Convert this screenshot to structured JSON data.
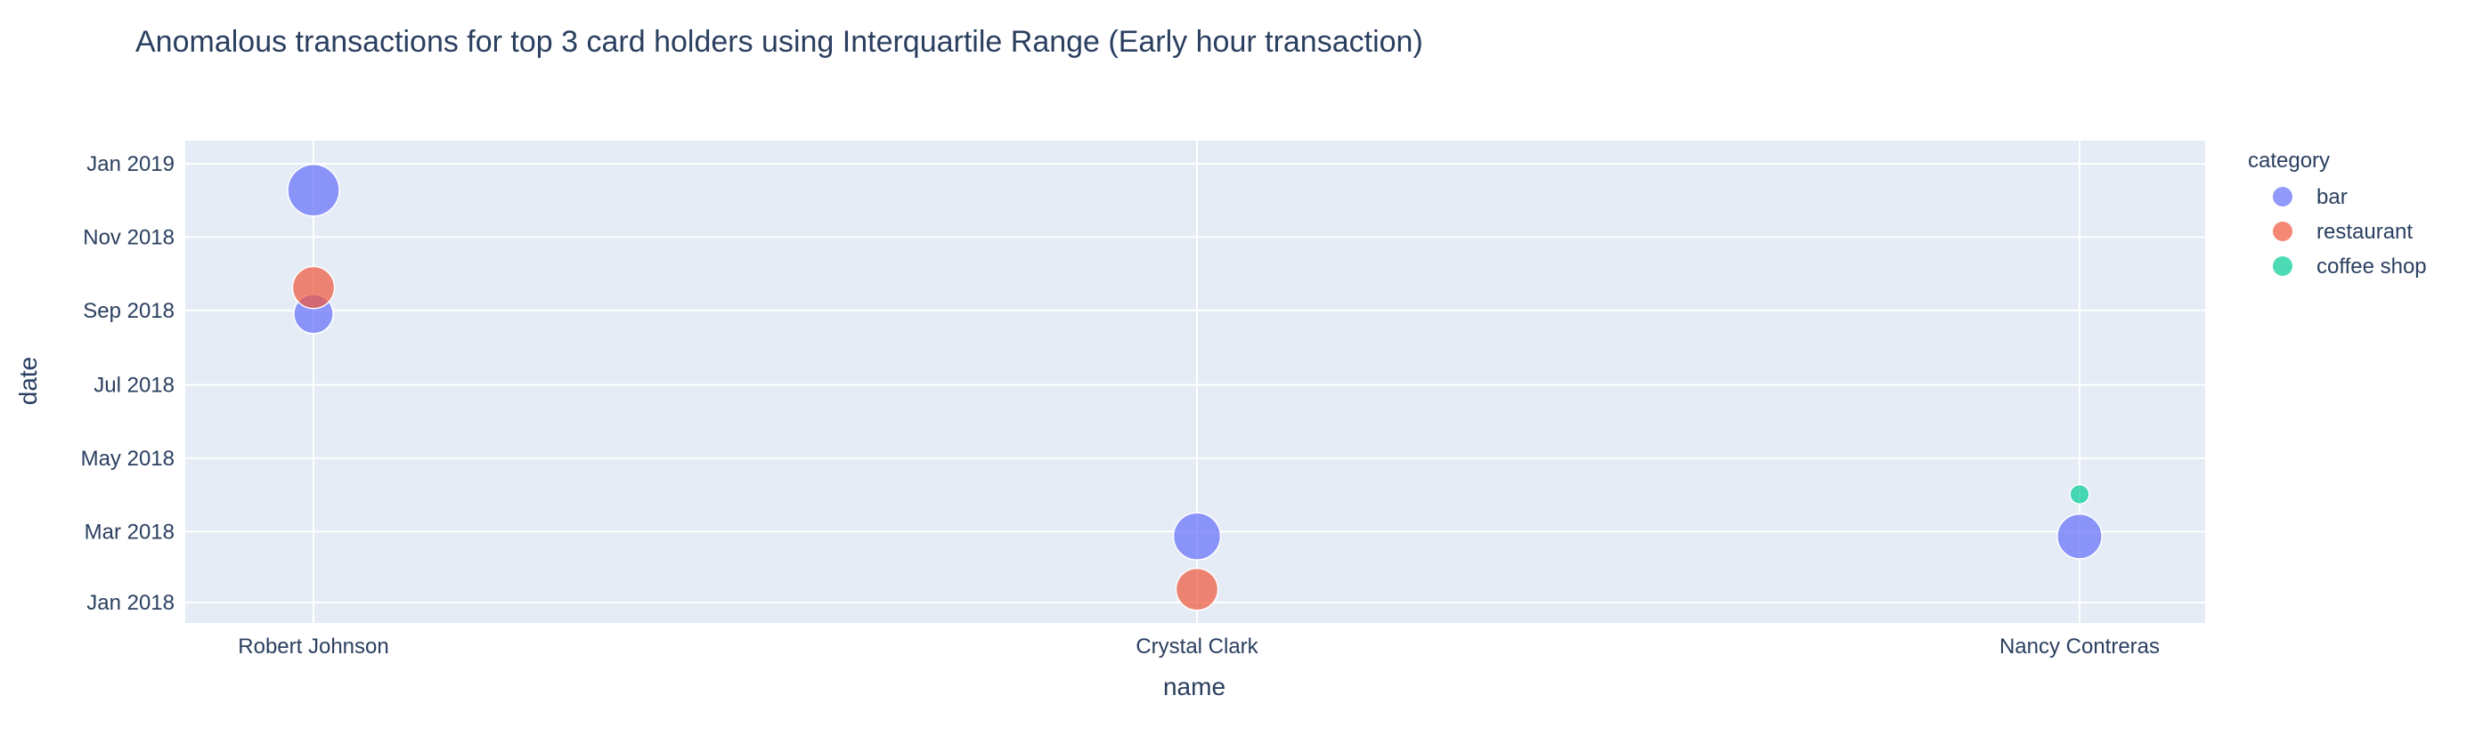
{
  "chart_data": {
    "type": "scatter",
    "title": "Anomalous transactions for top 3 card holders using Interquartile Range (Early hour transaction)",
    "xlabel": "name",
    "ylabel": "date",
    "categories": [
      "Robert Johnson",
      "Crystal Clark",
      "Nancy Contreras"
    ],
    "y_ticks": [
      {
        "value": "2018-01-01",
        "label": "Jan 2018"
      },
      {
        "value": "2018-03-01",
        "label": "Mar 2018"
      },
      {
        "value": "2018-05-01",
        "label": "May 2018"
      },
      {
        "value": "2018-07-01",
        "label": "Jul 2018"
      },
      {
        "value": "2018-09-01",
        "label": "Sep 2018"
      },
      {
        "value": "2018-11-01",
        "label": "Nov 2018"
      },
      {
        "value": "2019-01-01",
        "label": "Jan 2019"
      }
    ],
    "ylim": [
      "2017-12-24",
      "2019-01-22"
    ],
    "grid": true,
    "background_color": "#e5ecf6",
    "legend": {
      "title": "category",
      "placement": "right"
    },
    "series": [
      {
        "name": "bar",
        "color": "#636efa",
        "points": [
          {
            "x": "Robert Johnson",
            "y": "2018-12-10",
            "size": 1.0
          },
          {
            "x": "Robert Johnson",
            "y": "2018-08-29",
            "size": 0.58
          },
          {
            "x": "Crystal Clark",
            "y": "2018-02-25",
            "size": 0.83
          },
          {
            "x": "Nancy Contreras",
            "y": "2018-02-25",
            "size": 0.75
          }
        ]
      },
      {
        "name": "restaurant",
        "color": "#ef553b",
        "points": [
          {
            "x": "Robert Johnson",
            "y": "2018-09-20",
            "size": 0.66
          },
          {
            "x": "Crystal Clark",
            "y": "2018-01-12",
            "size": 0.66
          }
        ]
      },
      {
        "name": "coffee shop",
        "color": "#00cc96",
        "points": [
          {
            "x": "Nancy Contreras",
            "y": "2018-04-01",
            "size": 0.14
          }
        ]
      }
    ]
  }
}
